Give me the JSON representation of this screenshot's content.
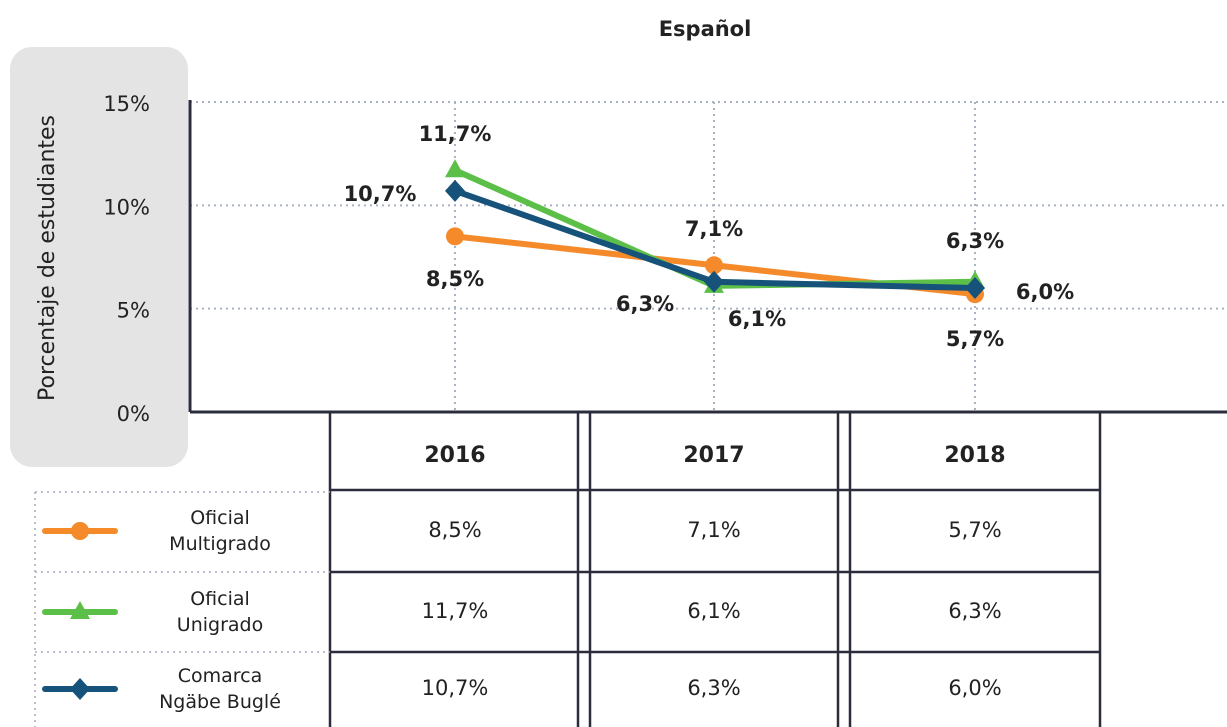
{
  "chart_data": {
    "type": "line",
    "title": "Español",
    "y_label": "Porcentaje de estudiantes",
    "categories": [
      "2016",
      "2017",
      "2018"
    ],
    "ylim": [
      0,
      15
    ],
    "yticks": [
      {
        "value": 0,
        "label": "0%"
      },
      {
        "value": 5,
        "label": "5%"
      },
      {
        "value": 10,
        "label": "10%"
      },
      {
        "value": 15,
        "label": "15%"
      }
    ],
    "grid": true,
    "series": [
      {
        "name": "Oficial Multigrado",
        "color": "#f58a2b",
        "marker": "circle",
        "values": [
          8.5,
          7.1,
          5.7
        ],
        "value_labels": [
          "8,5%",
          "7,1%",
          "5,7%"
        ]
      },
      {
        "name": "Oficial Unigrado",
        "color": "#5cbf47",
        "marker": "triangle",
        "values": [
          11.7,
          6.1,
          6.3
        ],
        "value_labels": [
          "11,7%",
          "6,1%",
          "6,3%"
        ]
      },
      {
        "name": "Comarca Ngäbe Buglé",
        "color": "#16527a",
        "marker": "diamond",
        "values": [
          10.7,
          6.3,
          6.0
        ],
        "value_labels": [
          "10,7%",
          "6,3%",
          "6,0%"
        ]
      }
    ]
  }
}
